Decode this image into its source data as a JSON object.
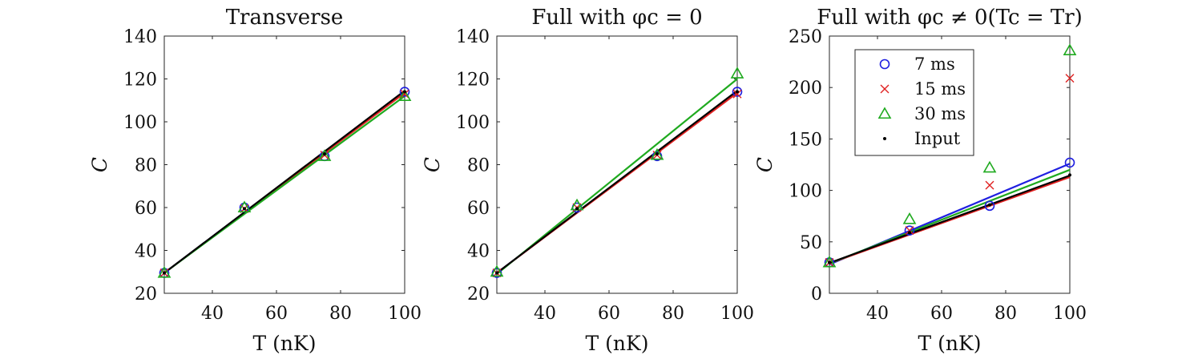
{
  "chart_data": [
    {
      "type": "scatter",
      "title": "Transverse",
      "xlabel": "T (nK)",
      "ylabel": "C",
      "xlim": [
        25,
        100
      ],
      "ylim": [
        20,
        140
      ],
      "xticks": [
        40,
        60,
        80,
        100
      ],
      "yticks": [
        20,
        40,
        60,
        80,
        100,
        120,
        140
      ],
      "x": [
        25,
        50,
        75,
        100
      ],
      "series": [
        {
          "name": "7 ms",
          "marker": "circle",
          "color": "#1f1fe0",
          "values": [
            29.5,
            60,
            84,
            114
          ],
          "fit": [
            29.5,
            114
          ]
        },
        {
          "name": "15 ms",
          "marker": "x",
          "color": "#e02020",
          "values": [
            29.5,
            59.5,
            84.5,
            113
          ],
          "fit": [
            29.5,
            113.5
          ]
        },
        {
          "name": "30 ms",
          "marker": "triangle",
          "color": "#1faa1f",
          "values": [
            29.5,
            60,
            84,
            112
          ],
          "fit": [
            29.5,
            112
          ]
        },
        {
          "name": "Input",
          "marker": "dot",
          "color": "#000000",
          "values": [
            29.5,
            59.5,
            85,
            114
          ],
          "fit": [
            29.5,
            114.5
          ]
        }
      ]
    },
    {
      "type": "scatter",
      "title": "Full with φc = 0",
      "xlabel": "T (nK)",
      "ylabel": "C",
      "xlim": [
        25,
        100
      ],
      "ylim": [
        20,
        140
      ],
      "xticks": [
        40,
        60,
        80,
        100
      ],
      "yticks": [
        20,
        40,
        60,
        80,
        100,
        120,
        140
      ],
      "x": [
        25,
        50,
        75,
        100
      ],
      "series": [
        {
          "name": "7 ms",
          "marker": "circle",
          "color": "#1f1fe0",
          "values": [
            29.5,
            60,
            84,
            114
          ],
          "fit": [
            29.5,
            114
          ]
        },
        {
          "name": "15 ms",
          "marker": "x",
          "color": "#e02020",
          "values": [
            29.5,
            60,
            84.5,
            113
          ],
          "fit": [
            29.5,
            113.5
          ]
        },
        {
          "name": "30 ms",
          "marker": "triangle",
          "color": "#1faa1f",
          "values": [
            30,
            61,
            84.5,
            122.5
          ],
          "fit": [
            29,
            120
          ]
        },
        {
          "name": "Input",
          "marker": "dot",
          "color": "#000000",
          "values": [
            29.5,
            59.5,
            85,
            114
          ],
          "fit": [
            29.5,
            114.5
          ]
        }
      ]
    },
    {
      "type": "scatter",
      "title": "Full with φc ≠ 0(Tc = Tr)",
      "xlabel": "T (nK)",
      "ylabel": "C",
      "xlim": [
        25,
        100
      ],
      "ylim": [
        0,
        250
      ],
      "xticks": [
        40,
        60,
        80,
        100
      ],
      "yticks": [
        0,
        50,
        100,
        150,
        200,
        250
      ],
      "x": [
        25,
        50,
        75,
        100
      ],
      "legend": "top-left",
      "series": [
        {
          "name": "7 ms",
          "marker": "circle",
          "color": "#1f1fe0",
          "values": [
            30,
            61,
            85,
            127
          ],
          "fit": [
            28,
            126
          ]
        },
        {
          "name": "15 ms",
          "marker": "x",
          "color": "#e02020",
          "values": [
            30,
            61,
            105,
            209
          ],
          "fit": [
            29,
            113
          ]
        },
        {
          "name": "30 ms",
          "marker": "triangle",
          "color": "#1faa1f",
          "values": [
            30,
            72,
            122,
            236
          ],
          "fit": [
            29,
            120
          ]
        },
        {
          "name": "Input",
          "marker": "dot",
          "color": "#000000",
          "values": [
            30,
            59,
            86,
            115
          ],
          "fit": [
            29.5,
            114.5
          ]
        }
      ]
    }
  ]
}
